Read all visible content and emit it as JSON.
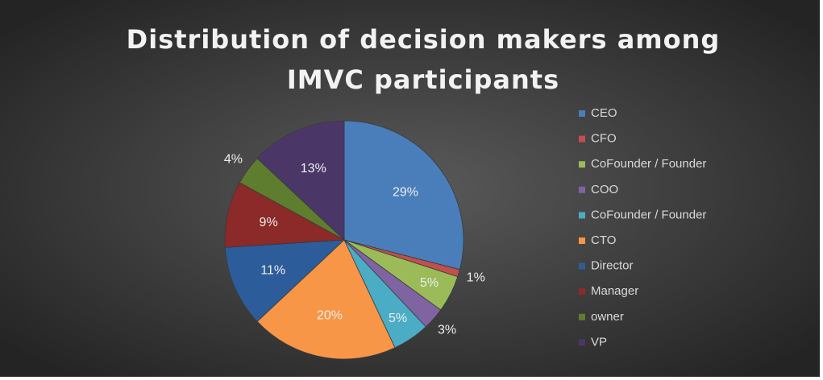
{
  "chart_data": {
    "type": "pie",
    "title": "Distribution of decision makers among IMVC participants",
    "categories": [
      "CEO",
      "CFO",
      "CoFounder / Founder",
      "COO",
      "CoFounder / Founder",
      "CTO",
      "Director",
      "Manager",
      "owner",
      "VP"
    ],
    "values": [
      29,
      1,
      5,
      3,
      5,
      20,
      11,
      9,
      4,
      13
    ],
    "value_labels": [
      "29%",
      "1%",
      "5%",
      "3%",
      "5%",
      "20%",
      "11%",
      "9%",
      "4%",
      "13%"
    ],
    "colors": [
      "#4a7ebb",
      "#c0504d",
      "#9bbb59",
      "#8064a2",
      "#4bacc6",
      "#f79646",
      "#2c5d9a",
      "#8b2a28",
      "#5f7d2e",
      "#4a3768"
    ],
    "legend": "right"
  }
}
